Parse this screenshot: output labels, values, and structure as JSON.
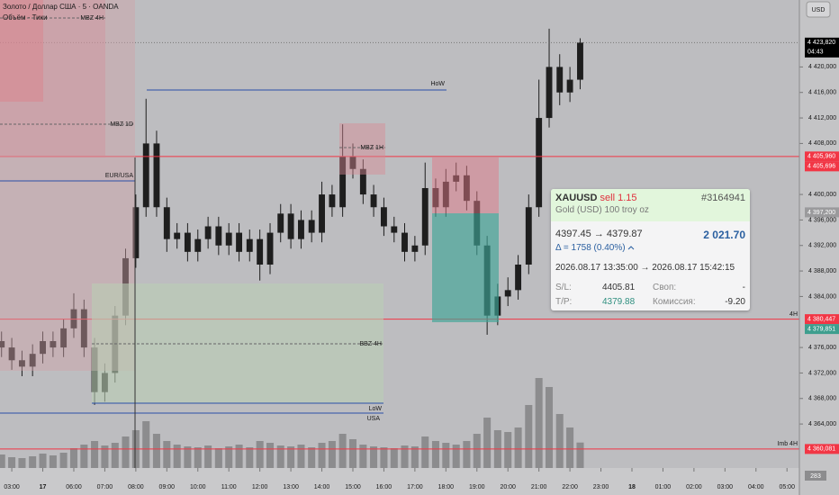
{
  "header": {
    "symbol": "Золото / Доллар США · 5 · OANDA",
    "indicator": "Объём · Тики",
    "currency": "USD"
  },
  "chart_data": {
    "type": "candlestick",
    "color": "#1e1e1e",
    "volume_color": "#8c8c8e",
    "x": [
      -0.33,
      0,
      0.33,
      0.67,
      1,
      1.33,
      1.67,
      2,
      2.33,
      2.67,
      3,
      3.33,
      3.67,
      4,
      4.33,
      4.67,
      5,
      5.33,
      5.67,
      6,
      6.33,
      6.67,
      7,
      7.33,
      7.67,
      8,
      8.33,
      8.67,
      9,
      9.33,
      9.67,
      10,
      10.33,
      10.67,
      11,
      11.33,
      11.67,
      12,
      12.33,
      12.67,
      13,
      13.33,
      13.67,
      14,
      14.33,
      14.67,
      15,
      15.33,
      15.67,
      16,
      16.33,
      16.67,
      17,
      17.33,
      17.67,
      18,
      18.33
    ],
    "open": [
      4377,
      4376,
      4374,
      4373,
      4375,
      4377,
      4376,
      4379,
      4382,
      4376,
      4369,
      4372,
      4381,
      4390,
      4398,
      4408,
      4398,
      4393,
      4394,
      4391,
      4393,
      4395,
      4392,
      4394,
      4391,
      4393,
      4389,
      4394,
      4397,
      4393,
      4396,
      4394,
      4400,
      4398,
      4406,
      4404,
      4400,
      4398,
      4395,
      4394,
      4391,
      4392,
      4401,
      4398,
      4402,
      4403,
      4399,
      4392,
      4381,
      4384,
      4385,
      4389,
      4398,
      4412,
      4420,
      4416,
      4418
    ],
    "high": [
      4378.5,
      4377.5,
      4375.5,
      4376.5,
      4378.5,
      4378.5,
      4380.5,
      4384.5,
      4383.5,
      4377.5,
      4373.5,
      4382.5,
      4391.5,
      4400,
      4415,
      4410,
      4399.5,
      4395.5,
      4395.5,
      4394.5,
      4396.5,
      4396.5,
      4395.5,
      4395.5,
      4394.5,
      4394.5,
      4395.5,
      4398.5,
      4398.5,
      4397.5,
      4397.5,
      4402,
      4401.5,
      4411,
      4408,
      4405.5,
      4401.5,
      4399.5,
      4396.5,
      4395.5,
      4393.5,
      4405,
      4402.5,
      4404,
      4405,
      4404.5,
      4400.5,
      4393.5,
      4386,
      4387,
      4390.5,
      4400,
      4418,
      4426,
      4422,
      4420,
      4424.5
    ],
    "low": [
      4374.5,
      4372.5,
      4371.5,
      4371.5,
      4373.5,
      4374.5,
      4374.5,
      4377.5,
      4374.5,
      4367,
      4367.5,
      4370.5,
      4379.5,
      4388.5,
      4396.5,
      4396.5,
      4391,
      4391.5,
      4389.5,
      4389.5,
      4391.5,
      4390.5,
      4390.5,
      4389.5,
      4389.5,
      4386.5,
      4387.5,
      4392.5,
      4391.5,
      4391.5,
      4392.5,
      4392.5,
      4396.5,
      4396.5,
      4402.5,
      4398.5,
      4396.5,
      4393.5,
      4392.5,
      4389.5,
      4389.5,
      4390.5,
      4396.5,
      4396.5,
      4400.5,
      4397.5,
      4390.5,
      4378,
      4379.5,
      4382.5,
      4383.5,
      4387.5,
      4396.5,
      4410.5,
      4414,
      4414.5,
      4416.5
    ],
    "close": [
      4376,
      4374,
      4373,
      4375,
      4377,
      4376,
      4379,
      4382,
      4376,
      4369,
      4372,
      4381,
      4390,
      4398,
      4408,
      4398,
      4393,
      4394,
      4391,
      4393,
      4395,
      4392,
      4394,
      4391,
      4393,
      4389,
      4394,
      4397,
      4393,
      4396,
      4394,
      4400,
      4398,
      4406,
      4404,
      4400,
      4398,
      4395,
      4394,
      4391,
      4392,
      4401,
      4398,
      4402,
      4403,
      4399,
      4392,
      4381,
      4384,
      4385,
      4389,
      4398,
      4412,
      4420,
      4416,
      4418,
      4423.82
    ],
    "volume": [
      150,
      120,
      110,
      130,
      160,
      140,
      170,
      220,
      260,
      300,
      250,
      280,
      350,
      420,
      520,
      380,
      300,
      260,
      240,
      230,
      250,
      220,
      240,
      260,
      230,
      300,
      280,
      250,
      240,
      260,
      230,
      280,
      300,
      380,
      320,
      260,
      240,
      230,
      220,
      250,
      240,
      350,
      300,
      280,
      260,
      300,
      380,
      560,
      420,
      400,
      450,
      700,
      1000,
      900,
      600,
      450,
      283
    ],
    "xlim": [
      -0.38,
      25.4
    ],
    "xticks": [
      {
        "value": 0,
        "label": "03:00"
      },
      {
        "value": 1,
        "label": "17"
      },
      {
        "value": 2,
        "label": "06:00"
      },
      {
        "value": 3,
        "label": "07:00"
      },
      {
        "value": 4,
        "label": "08:00"
      },
      {
        "value": 5,
        "label": "09:00"
      },
      {
        "value": 6,
        "label": "10:00"
      },
      {
        "value": 7,
        "label": "11:00"
      },
      {
        "value": 8,
        "label": "12:00"
      },
      {
        "value": 9,
        "label": "13:00"
      },
      {
        "value": 10,
        "label": "14:00"
      },
      {
        "value": 11,
        "label": "15:00"
      },
      {
        "value": 12,
        "label": "16:00"
      },
      {
        "value": 13,
        "label": "17:00"
      },
      {
        "value": 14,
        "label": "18:00"
      },
      {
        "value": 15,
        "label": "19:00"
      },
      {
        "value": 16,
        "label": "20:00"
      },
      {
        "value": 17,
        "label": "21:00"
      },
      {
        "value": 18,
        "label": "22:00"
      },
      {
        "value": 19,
        "label": "23:00"
      },
      {
        "value": 20,
        "label": "18"
      },
      {
        "value": 21,
        "label": "01:00"
      },
      {
        "value": 22,
        "label": "02:00"
      },
      {
        "value": 23,
        "label": "03:00"
      },
      {
        "value": 24,
        "label": "04:00"
      },
      {
        "value": 25,
        "label": "05:00"
      }
    ],
    "ylim": [
      4357.1,
      4430.5
    ],
    "yticks": [
      {
        "value": 4420,
        "label": "4 420,000"
      },
      {
        "value": 4416,
        "label": "4 416,000"
      },
      {
        "value": 4412,
        "label": "4 412,000"
      },
      {
        "value": 4408,
        "label": "4 408,000"
      },
      {
        "value": 4400,
        "label": "4 400,000"
      },
      {
        "value": 4396,
        "label": "4 396,000"
      },
      {
        "value": 4392,
        "label": "4 392,000"
      },
      {
        "value": 4388,
        "label": "4 388,000"
      },
      {
        "value": 4384,
        "label": "4 384,000"
      },
      {
        "value": 4376,
        "label": "4 376,000"
      },
      {
        "value": 4372,
        "label": "4 372,000"
      },
      {
        "value": 4368,
        "label": "4 368,000"
      },
      {
        "value": 4364,
        "label": "4 364,000"
      }
    ],
    "price_labels": [
      {
        "value": 4423.82,
        "label": "4 423,820",
        "time": "04:43",
        "color": "#000000",
        "line": "dotted"
      },
      {
        "value": 4405.96,
        "label": "4 405,960",
        "color": "#f23645",
        "line": "solid"
      },
      {
        "value": 4405.696,
        "label": "4 405,696",
        "color": "#f23645"
      },
      {
        "value": 4397.2,
        "label": "4 397,200",
        "color": "#9a9a9c"
      },
      {
        "value": 4380.447,
        "label": "4 380,447",
        "color": "#f23645",
        "line": "solid"
      },
      {
        "value": 4379.851,
        "label": "4 379,851",
        "color": "#3e9e8e"
      },
      {
        "value": 4360.081,
        "label": "4 360,081",
        "color": "#f23645",
        "line": "solid"
      }
    ]
  },
  "annotations": {
    "mbz4h": "MBZ 4H",
    "mbz1d": "MBZ 1D",
    "eurusa": "EUR/USA",
    "how": "HoW",
    "mbz1h": "MBZ 1H",
    "bbz4h": "BBZ 4H",
    "low": "LoW",
    "usa": "USA",
    "h4": "4H",
    "imb4h": "Imb 4H"
  },
  "trade": {
    "symbol": "XAUUSD",
    "side": "sell 1.15",
    "id": "#3164941",
    "description": "Gold (USD) 100 troy oz",
    "prices": "4397.45 → 4379.87",
    "profit": "2 021.70",
    "delta": "Δ = 1758 (0.40%)",
    "times": "2026.08.17 13:35:00 → 2026.08.17 15:42:15",
    "sl_label": "S/L:",
    "sl": "4405.81",
    "swap_label": "Своп:",
    "swap": "-",
    "tp_label": "T/P:",
    "tp": "4379.88",
    "commission_label": "Комиссия:",
    "commission": "-9.20"
  }
}
